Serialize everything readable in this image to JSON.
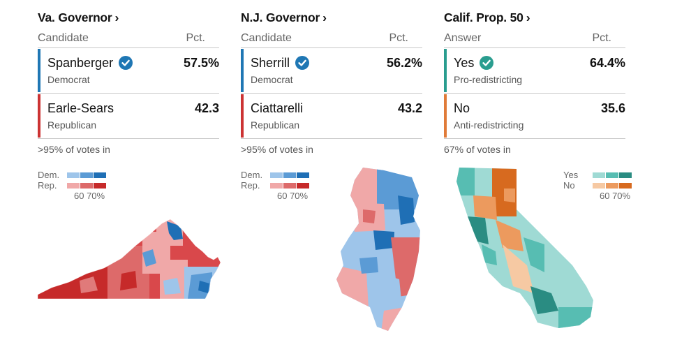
{
  "races": [
    {
      "title": "Va. Governor",
      "chevron": "›",
      "col_candidate": "Candidate",
      "col_pct": "Pct.",
      "rows": [
        {
          "name": "Spanberger",
          "party": "Democrat",
          "pct": "57.5%",
          "winner": true,
          "color": "#1f77b4"
        },
        {
          "name": "Earle-Sears",
          "party": "Republican",
          "pct": "42.3",
          "winner": false,
          "color": "#cc3333"
        }
      ],
      "note": ">95% of votes in",
      "legend": {
        "a": "Dem.",
        "b": "Rep.",
        "ticks": "60 70%",
        "a_colors": [
          "#9ec5ea",
          "#5b9bd5",
          "#1f6fb5"
        ],
        "b_colors": [
          "#f0a8a8",
          "#dd6a6a",
          "#c62a2a"
        ]
      }
    },
    {
      "title": "N.J. Governor",
      "chevron": "›",
      "col_candidate": "Candidate",
      "col_pct": "Pct.",
      "rows": [
        {
          "name": "Sherrill",
          "party": "Democrat",
          "pct": "56.2%",
          "winner": true,
          "color": "#1f77b4"
        },
        {
          "name": "Ciattarelli",
          "party": "Republican",
          "pct": "43.2",
          "winner": false,
          "color": "#cc3333"
        }
      ],
      "note": ">95% of votes in",
      "legend": {
        "a": "Dem.",
        "b": "Rep.",
        "ticks": "60 70%",
        "a_colors": [
          "#9ec5ea",
          "#5b9bd5",
          "#1f6fb5"
        ],
        "b_colors": [
          "#f0a8a8",
          "#dd6a6a",
          "#c62a2a"
        ]
      }
    },
    {
      "title": "Calif. Prop. 50",
      "chevron": "›",
      "col_candidate": "Answer",
      "col_pct": "Pct.",
      "rows": [
        {
          "name": "Yes",
          "party": "Pro-redistricting",
          "pct": "64.4%",
          "winner": true,
          "color": "#2a9d8f"
        },
        {
          "name": "No",
          "party": "Anti-redistricting",
          "pct": "35.6",
          "winner": false,
          "color": "#e07b39"
        }
      ],
      "note": "67% of votes in",
      "legend": {
        "a": "Yes",
        "b": "No",
        "ticks": "60 70%",
        "a_colors": [
          "#9fdad4",
          "#57bdb2",
          "#2a8c82"
        ],
        "b_colors": [
          "#f6c9a3",
          "#ec9a5e",
          "#d76a1f"
        ]
      }
    }
  ]
}
